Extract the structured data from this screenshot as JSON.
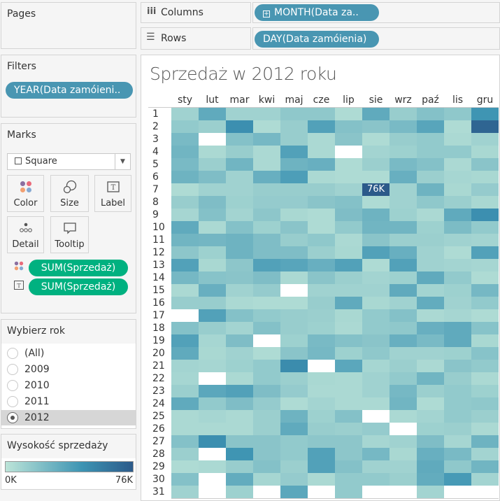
{
  "pages": {
    "title": "Pages"
  },
  "filters": {
    "title": "Filters",
    "pills": [
      "YEAR(Data zamóieni.."
    ]
  },
  "marks": {
    "title": "Marks",
    "mark_type": "Square",
    "buttons": [
      "Color",
      "Size",
      "Label",
      "Detail",
      "Tooltip"
    ],
    "fields": [
      {
        "icon": "color-icon",
        "label": "SUM(Sprzedaż)"
      },
      {
        "icon": "label-icon",
        "label": "SUM(Sprzedaż)"
      }
    ]
  },
  "year_filter": {
    "title": "Wybierz rok",
    "options": [
      "(All)",
      "2009",
      "2010",
      "2011",
      "2012"
    ],
    "selected": "2012"
  },
  "legend": {
    "title": "Wysokość sprzedaży",
    "min_label": "0K",
    "max_label": "76K",
    "colors": [
      "#bce4d8",
      "#3d94b3",
      "#2c5a8a"
    ]
  },
  "shelves": {
    "columns_label": "Columns",
    "columns_pill": "MONTH(Data za..",
    "rows_label": "Rows",
    "rows_pill": "DAY(Data zamóienia)"
  },
  "chart_data": {
    "type": "heatmap",
    "title": "Sprzedaż w 2012 roku",
    "x_categories": [
      "sty",
      "lut",
      "mar",
      "kwi",
      "maj",
      "cze",
      "lip",
      "sie",
      "wrz",
      "paź",
      "lis",
      "gru"
    ],
    "y_categories": [
      "1",
      "2",
      "3",
      "4",
      "5",
      "6",
      "7",
      "8",
      "9",
      "10",
      "11",
      "12",
      "13",
      "14",
      "15",
      "16",
      "17",
      "18",
      "19",
      "20",
      "21",
      "22",
      "23",
      "24",
      "25",
      "26",
      "27",
      "28",
      "29",
      "30",
      "31"
    ],
    "value_unit": "K",
    "color_range": [
      0,
      76
    ],
    "labeled_cell": {
      "day": "7",
      "month": "sie",
      "label": "76K"
    },
    "values": [
      [
        10,
        33,
        10,
        10,
        16,
        16,
        5,
        33,
        13,
        20,
        16,
        45
      ],
      [
        15,
        12,
        48,
        5,
        13,
        38,
        20,
        18,
        24,
        36,
        5,
        70
      ],
      [
        24,
        null,
        20,
        25,
        13,
        6,
        18,
        5,
        13,
        15,
        6,
        10
      ],
      [
        27,
        6,
        13,
        6,
        38,
        6,
        null,
        9,
        11,
        15,
        15,
        7
      ],
      [
        24,
        12,
        27,
        6,
        28,
        30,
        5,
        12,
        24,
        20,
        6,
        18
      ],
      [
        28,
        22,
        10,
        30,
        40,
        6,
        5,
        5,
        30,
        12,
        8,
        7
      ],
      [
        5,
        10,
        10,
        13,
        13,
        13,
        10,
        76,
        10,
        28,
        7,
        14
      ],
      [
        13,
        22,
        11,
        14,
        14,
        18,
        20,
        5,
        10,
        16,
        12,
        7
      ],
      [
        8,
        20,
        9,
        17,
        7,
        5,
        22,
        28,
        11,
        6,
        33,
        48
      ],
      [
        33,
        6,
        20,
        11,
        18,
        5,
        15,
        27,
        27,
        11,
        23,
        15
      ],
      [
        27,
        26,
        28,
        22,
        13,
        16,
        6,
        18,
        12,
        12,
        10,
        9
      ],
      [
        17,
        11,
        28,
        22,
        22,
        12,
        7,
        38,
        30,
        10,
        5,
        38
      ],
      [
        38,
        7,
        17,
        38,
        36,
        30,
        38,
        5,
        38,
        10,
        9,
        8
      ],
      [
        25,
        19,
        18,
        22,
        6,
        18,
        12,
        9,
        11,
        33,
        15,
        5
      ],
      [
        6,
        30,
        10,
        14,
        null,
        10,
        10,
        10,
        33,
        9,
        11,
        25
      ],
      [
        13,
        13,
        6,
        5,
        5,
        13,
        33,
        7,
        10,
        32,
        10,
        15
      ],
      [
        null,
        38,
        20,
        15,
        13,
        12,
        7,
        15,
        20,
        6,
        8,
        5
      ],
      [
        20,
        13,
        9,
        20,
        13,
        11,
        6,
        15,
        16,
        30,
        33,
        19
      ],
      [
        38,
        8,
        22,
        null,
        11,
        24,
        20,
        18,
        30,
        24,
        33,
        7
      ],
      [
        33,
        7,
        10,
        5,
        18,
        25,
        11,
        16,
        10,
        10,
        11,
        19
      ],
      [
        9,
        8,
        11,
        15,
        50,
        null,
        35,
        8,
        12,
        6,
        18,
        15
      ],
      [
        8,
        null,
        6,
        15,
        12,
        7,
        6,
        10,
        15,
        27,
        13,
        6
      ],
      [
        12,
        35,
        38,
        22,
        14,
        6,
        6,
        10,
        25,
        12,
        15,
        11
      ],
      [
        33,
        15,
        22,
        14,
        5,
        9,
        6,
        6,
        27,
        5,
        15,
        16
      ],
      [
        6,
        8,
        6,
        12,
        28,
        11,
        20,
        null,
        6,
        9,
        15,
        12
      ],
      [
        6,
        6,
        6,
        12,
        33,
        13,
        12,
        14,
        null,
        11,
        12,
        6
      ],
      [
        20,
        48,
        18,
        18,
        15,
        17,
        17,
        8,
        10,
        22,
        8,
        28
      ],
      [
        12,
        null,
        45,
        18,
        15,
        38,
        17,
        25,
        7,
        30,
        24,
        9
      ],
      [
        5,
        6,
        13,
        20,
        12,
        38,
        20,
        10,
        10,
        33,
        16,
        27
      ],
      [
        20,
        null,
        32,
        8,
        14,
        6,
        15,
        15,
        12,
        32,
        42,
        9
      ],
      [
        10,
        null,
        11,
        null,
        35,
        null,
        15,
        null,
        null,
        9,
        null,
        null
      ]
    ]
  }
}
